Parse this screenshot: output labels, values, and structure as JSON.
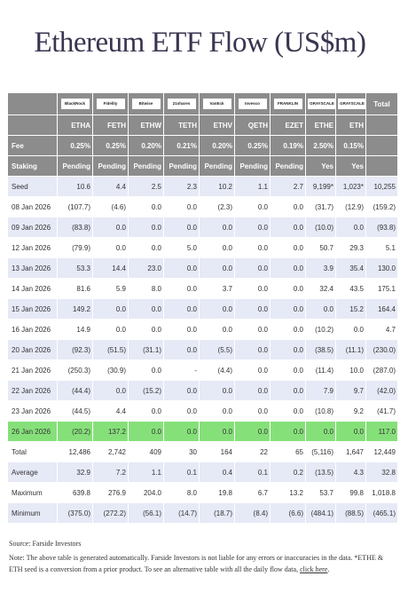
{
  "title": "Ethereum ETF Flow (US$m)",
  "header": {
    "logos": [
      "BlackRock",
      "Fidelity",
      "Bitwise",
      "21shares",
      "VanEck",
      "Invesco",
      "FRANKLIN",
      "GRAYSCALE",
      "GRAYSCALE"
    ],
    "total_label": "Total",
    "tickers": [
      "ETHA",
      "FETH",
      "ETHW",
      "TETH",
      "ETHV",
      "QETH",
      "EZET",
      "ETHE",
      "ETH"
    ],
    "fee_label": "Fee",
    "fees": [
      "0.25%",
      "0.25%",
      "0.20%",
      "0.21%",
      "0.20%",
      "0.25%",
      "0.19%",
      "2.50%",
      "0.15%"
    ],
    "staking_label": "Staking",
    "staking": [
      "Pending",
      "Pending",
      "Pending",
      "Pending",
      "Pending",
      "Pending",
      "Pending",
      "Yes",
      "Yes"
    ]
  },
  "rows": [
    {
      "label": "Seed",
      "values": [
        "10.6",
        "4.4",
        "2.5",
        "2.3",
        "10.2",
        "1.1",
        "2.7",
        "9,199*",
        "1,023*",
        "10,255"
      ]
    },
    {
      "label": "08 Jan 2026",
      "values": [
        "(107.7)",
        "(4.6)",
        "0.0",
        "0.0",
        "(2.3)",
        "0.0",
        "0.0",
        "(31.7)",
        "(12.9)",
        "(159.2)"
      ]
    },
    {
      "label": "09 Jan 2026",
      "values": [
        "(83.8)",
        "0.0",
        "0.0",
        "0.0",
        "0.0",
        "0.0",
        "0.0",
        "(10.0)",
        "0.0",
        "(93.8)"
      ]
    },
    {
      "label": "12 Jan 2026",
      "values": [
        "(79.9)",
        "0.0",
        "0.0",
        "5.0",
        "0.0",
        "0.0",
        "0.0",
        "50.7",
        "29.3",
        "5.1"
      ]
    },
    {
      "label": "13 Jan 2026",
      "values": [
        "53.3",
        "14.4",
        "23.0",
        "0.0",
        "0.0",
        "0.0",
        "0.0",
        "3.9",
        "35.4",
        "130.0"
      ]
    },
    {
      "label": "14 Jan 2026",
      "values": [
        "81.6",
        "5.9",
        "8.0",
        "0.0",
        "3.7",
        "0.0",
        "0.0",
        "32.4",
        "43.5",
        "175.1"
      ]
    },
    {
      "label": "15 Jan 2026",
      "values": [
        "149.2",
        "0.0",
        "0.0",
        "0.0",
        "0.0",
        "0.0",
        "0.0",
        "0.0",
        "15.2",
        "164.4"
      ]
    },
    {
      "label": "16 Jan 2026",
      "values": [
        "14.9",
        "0.0",
        "0.0",
        "0.0",
        "0.0",
        "0.0",
        "0.0",
        "(10.2)",
        "0.0",
        "4.7"
      ]
    },
    {
      "label": "20 Jan 2026",
      "values": [
        "(92.3)",
        "(51.5)",
        "(31.1)",
        "0.0",
        "(5.5)",
        "0.0",
        "0.0",
        "(38.5)",
        "(11.1)",
        "(230.0)"
      ]
    },
    {
      "label": "21 Jan 2026",
      "values": [
        "(250.3)",
        "(30.9)",
        "0.0",
        "-",
        "(4.4)",
        "0.0",
        "0.0",
        "(11.4)",
        "10.0",
        "(287.0)"
      ]
    },
    {
      "label": "22 Jan 2026",
      "values": [
        "(44.4)",
        "0.0",
        "(15.2)",
        "0.0",
        "0.0",
        "0.0",
        "0.0",
        "7.9",
        "9.7",
        "(42.0)"
      ]
    },
    {
      "label": "23 Jan 2026",
      "values": [
        "(44.5)",
        "4.4",
        "0.0",
        "0.0",
        "0.0",
        "0.0",
        "0.0",
        "(10.8)",
        "9.2",
        "(41.7)"
      ]
    },
    {
      "label": "26 Jan 2026",
      "values": [
        "(20.2)",
        "137.2",
        "0.0",
        "0.0",
        "0.0",
        "0.0",
        "0.0",
        "0.0",
        "0.0",
        "117.0"
      ],
      "highlight": true
    }
  ],
  "summary": [
    {
      "label": "Total",
      "values": [
        "12,486",
        "2,742",
        "409",
        "30",
        "164",
        "22",
        "65",
        "(5,116)",
        "1,647",
        "12,449"
      ]
    },
    {
      "label": "Average",
      "values": [
        "32.9",
        "7.2",
        "1.1",
        "0.1",
        "0.4",
        "0.1",
        "0.2",
        "(13.5)",
        "4.3",
        "32.8"
      ]
    },
    {
      "label": "Maximum",
      "values": [
        "639.8",
        "276.9",
        "204.0",
        "8.0",
        "19.8",
        "6.7",
        "13.2",
        "53.7",
        "99.8",
        "1,018.8"
      ]
    },
    {
      "label": "Minimum",
      "values": [
        "(375.0)",
        "(272.2)",
        "(56.1)",
        "(14.7)",
        "(18.7)",
        "(8.4)",
        "(6.6)",
        "(484.1)",
        "(88.5)",
        "(465.1)"
      ]
    }
  ],
  "footer": {
    "source": "Source: Farside Investors",
    "note": "Note: The above table is generated automatically. Farside Investors is not liable for any errors or inaccuracies in the data. *ETHE & ETH seed is a conversion from a prior product.  To see an alternative table with all the daily flow data, ",
    "link": "click here",
    "end": "."
  },
  "colors": {
    "header": "#8c8c8c",
    "stripe": "#e6e9f6",
    "highlight": "#86e07a",
    "negative": "#d32020",
    "title": "#3b3450"
  }
}
